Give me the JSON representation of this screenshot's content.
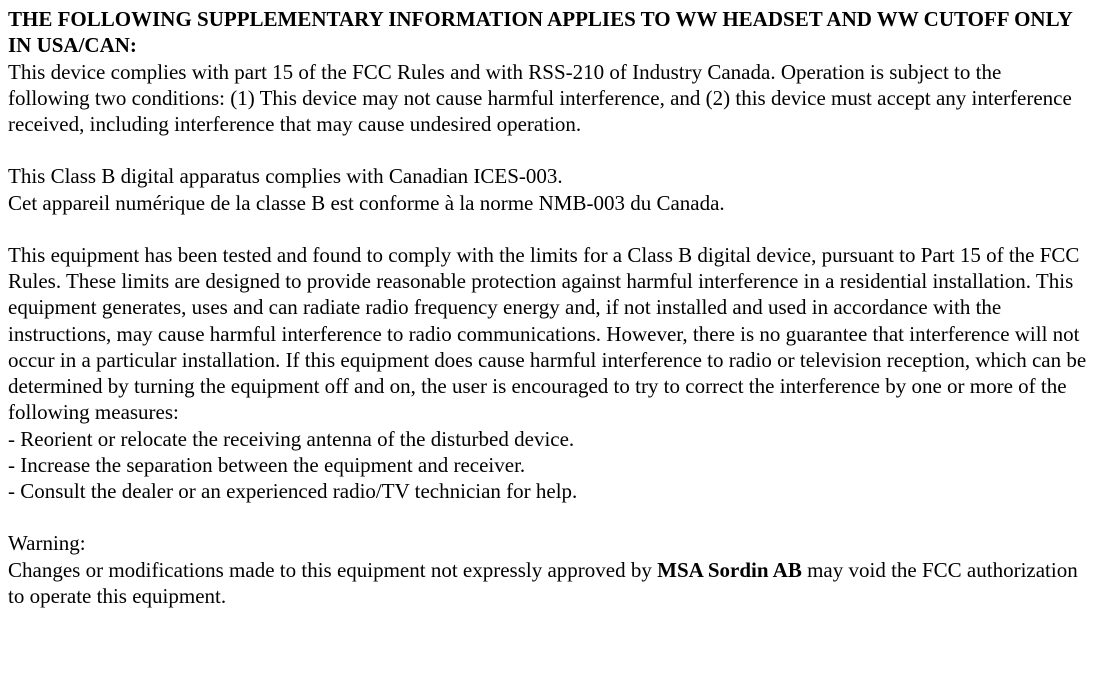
{
  "document": {
    "heading": "THE FOLLOWING SUPPLEMENTARY INFORMATION APPLIES TO WW HEADSET AND WW CUTOFF ONLY IN USA/CAN:",
    "para1": "This device complies with part 15 of the FCC Rules and with RSS-210 of Industry Canada. Operation is subject to the following two conditions: (1) This device may not cause harmful interference, and (2) this device must accept any interference received, including interference that may cause undesired operation.",
    "para2a": "This Class B digital apparatus complies with Canadian ICES-003.",
    "para2b": "Cet appareil numérique de la classe B est conforme à la norme NMB-003 du Canada.",
    "para3": "This equipment has been tested and found to comply with the limits for a Class B digital device, pursuant to Part 15 of the FCC Rules.  These limits are designed to provide reasonable protection against harmful interference in a residential installation.  This equipment generates, uses and can radiate radio frequency energy and, if not installed and used in accordance with the instructions, may cause harmful interference to radio communications.  However, there is no guarantee that interference will not occur in a particular installation.  If this equipment does cause harmful interference to radio or television reception, which can be determined by turning the equipment off and on, the user is encouraged to try to correct the interference by one or more of the following measures:",
    "bullet1": "- Reorient or relocate the receiving antenna of the disturbed device.",
    "bullet2": "- Increase the separation between the equipment and receiver.",
    "bullet3": "- Consult the dealer or an experienced radio/TV technician for help.",
    "warning_label": "Warning:",
    "warning_pre": "Changes or modifications made to this equipment not expressly approved by ",
    "warning_company": "MSA Sordin AB",
    "warning_post": " may void the FCC authorization to operate this equipment."
  }
}
